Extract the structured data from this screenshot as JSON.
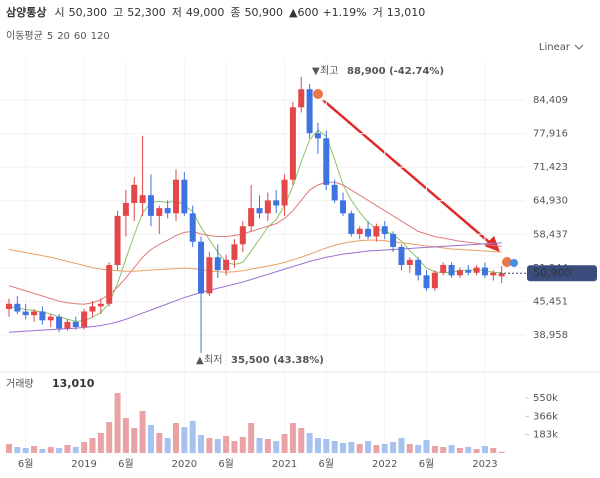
{
  "chart_data": {
    "type": "candlestick",
    "title": "삼양통상",
    "quote": [
      {
        "label": "시",
        "value": "50,300"
      },
      {
        "label": "고",
        "value": "52,300"
      },
      {
        "label": "저",
        "value": "49,000"
      },
      {
        "label": "종",
        "value": "50,900"
      }
    ],
    "change": "▲600",
    "change_pct": "+1.19%",
    "volume_quote": {
      "label": "거",
      "value": "13,010"
    },
    "ma_label": "이동평균",
    "scale_label": "Linear",
    "categories": [
      null,
      null,
      "6월",
      null,
      null,
      null,
      null,
      null,
      null,
      "2019",
      null,
      null,
      null,
      null,
      "6월",
      null,
      null,
      null,
      null,
      null,
      null,
      "2020",
      null,
      null,
      null,
      null,
      "6월",
      null,
      null,
      null,
      null,
      null,
      null,
      "2021",
      null,
      null,
      null,
      null,
      "6월",
      null,
      null,
      null,
      null,
      null,
      null,
      "2022",
      null,
      null,
      null,
      null,
      "6월",
      null,
      null,
      null,
      null,
      null,
      null,
      "2023",
      null,
      null
    ],
    "open": [
      44000,
      45000,
      43500,
      42800,
      43500,
      41800,
      42500,
      40200,
      41500,
      40500,
      43500,
      44500,
      45000,
      52500,
      62000,
      64500,
      64500,
      66000,
      62000,
      63500,
      62500,
      69000,
      62500,
      57000,
      47000,
      54000,
      51500,
      53500,
      56500,
      60000,
      63500,
      62500,
      65000,
      64000,
      69000,
      83000,
      86500,
      78000,
      77000,
      68000,
      65000,
      62500,
      58500,
      59500,
      58000,
      60000,
      58500,
      56000,
      52500,
      53500,
      50500,
      48000,
      51000,
      52500,
      50500,
      51500,
      51000,
      52000,
      50500,
      50300
    ],
    "high": [
      46000,
      46500,
      45000,
      44000,
      44500,
      43000,
      43000,
      42000,
      42500,
      44000,
      45500,
      46000,
      53000,
      63000,
      67000,
      69500,
      77500,
      70000,
      64000,
      65000,
      71000,
      70500,
      64000,
      58000,
      55000,
      56500,
      54500,
      57500,
      61000,
      68000,
      66000,
      66500,
      67000,
      70000,
      84000,
      88900,
      87500,
      80000,
      78500,
      69000,
      66500,
      63000,
      60000,
      61000,
      60500,
      61000,
      59000,
      56500,
      54000,
      54000,
      51500,
      51500,
      53000,
      53000,
      52000,
      52500,
      52500,
      53000,
      51500,
      52300
    ],
    "low": [
      42500,
      43000,
      42000,
      41500,
      41000,
      40500,
      39500,
      39800,
      40000,
      40000,
      42500,
      43000,
      44500,
      51500,
      58000,
      61000,
      62000,
      60000,
      58500,
      61500,
      61000,
      62000,
      56000,
      35500,
      46500,
      50000,
      50500,
      52000,
      55000,
      59000,
      61500,
      61000,
      62500,
      62000,
      68000,
      82000,
      77000,
      74000,
      67000,
      64500,
      62000,
      58000,
      57500,
      57500,
      57000,
      57500,
      55000,
      51500,
      51000,
      49500,
      47500,
      47500,
      50500,
      50000,
      50000,
      50500,
      50500,
      50000,
      49500,
      49000
    ],
    "close": [
      45000,
      43500,
      42800,
      43500,
      41800,
      42500,
      40200,
      41500,
      40500,
      43500,
      44500,
      45000,
      52500,
      62000,
      64500,
      68000,
      66000,
      62000,
      63500,
      62500,
      69000,
      62500,
      57000,
      47000,
      54000,
      51500,
      53500,
      56500,
      60000,
      63500,
      62500,
      65000,
      64000,
      69000,
      83000,
      86500,
      78000,
      77000,
      68000,
      65000,
      62500,
      58500,
      59500,
      58000,
      60000,
      58500,
      56000,
      52500,
      53500,
      50500,
      48000,
      51000,
      52500,
      50500,
      51500,
      51000,
      52000,
      50500,
      51000,
      50900
    ],
    "up_color": "#e3474a",
    "down_color": "#3f74e0",
    "series": [
      {
        "name": "5",
        "color": "#8bc26a",
        "values": [
          44500,
          44200,
          43900,
          43700,
          43400,
          43000,
          42500,
          42000,
          41600,
          41700,
          42400,
          43300,
          45100,
          48900,
          53700,
          58300,
          62600,
          64600,
          64800,
          64600,
          65000,
          64000,
          62800,
          59800,
          57400,
          55000,
          53000,
          52600,
          53000,
          55200,
          57500,
          59800,
          61300,
          64000,
          67700,
          72500,
          76700,
          78600,
          77400,
          72900,
          68000,
          65000,
          62700,
          60800,
          59500,
          59000,
          58400,
          57100,
          55300,
          53700,
          51900,
          51200,
          51000,
          51100,
          51400,
          51500,
          51600,
          51400,
          51100,
          51000
        ]
      },
      {
        "name": "20",
        "color": "#e07a7a",
        "values": [
          48500,
          48000,
          47500,
          47000,
          46500,
          46000,
          45500,
          45200,
          45000,
          44900,
          45200,
          45800,
          46800,
          48200,
          50000,
          52000,
          54000,
          55500,
          56500,
          57300,
          58200,
          58800,
          59000,
          58500,
          58200,
          58000,
          58000,
          58200,
          58500,
          59000,
          59500,
          60000,
          60500,
          61500,
          63000,
          65000,
          67000,
          68000,
          68500,
          68500,
          68000,
          67000,
          66000,
          65000,
          64000,
          63000,
          62000,
          61000,
          60000,
          59000,
          58500,
          58000,
          57700,
          57400,
          57100,
          56900,
          56700,
          56500,
          56300,
          56100
        ]
      },
      {
        "name": "60",
        "color": "#e8a060",
        "values": [
          55500,
          55200,
          54900,
          54600,
          54300,
          54000,
          53600,
          53200,
          52800,
          52400,
          52000,
          51700,
          51500,
          51400,
          51300,
          51300,
          51400,
          51500,
          51600,
          51700,
          51800,
          51900,
          51800,
          51600,
          51400,
          51200,
          51100,
          51200,
          51400,
          51700,
          52000,
          52300,
          52600,
          53000,
          53500,
          54000,
          54600,
          55200,
          55800,
          56300,
          56700,
          57000,
          57200,
          57300,
          57300,
          57200,
          57000,
          56800,
          56600,
          56400,
          56200,
          56000,
          55800,
          55600,
          55500,
          55400,
          55300,
          55200,
          55100,
          55000
        ]
      },
      {
        "name": "120",
        "color": "#9b6fd6",
        "values": [
          39500,
          39600,
          39700,
          39800,
          39900,
          40000,
          40100,
          40200,
          40300,
          40400,
          40600,
          40800,
          41100,
          41500,
          42000,
          42600,
          43200,
          43800,
          44400,
          45000,
          45600,
          46200,
          46700,
          47200,
          47600,
          48000,
          48400,
          48800,
          49200,
          49700,
          50200,
          50700,
          51200,
          51700,
          52200,
          52700,
          53200,
          53600,
          54000,
          54300,
          54600,
          54800,
          55000,
          55200,
          55300,
          55400,
          55500,
          55600,
          55700,
          55800,
          55900,
          56000,
          56100,
          56200,
          56300,
          56400,
          56500,
          56600,
          56700,
          56800
        ]
      }
    ],
    "ylim": [
      32190,
      92150
    ],
    "yticks": [
      {
        "value": 38958,
        "label": "38,958"
      },
      {
        "value": 45451,
        "label": "45,451"
      },
      {
        "value": 51944,
        "label": "51,944"
      },
      {
        "value": 58437,
        "label": "58,437"
      },
      {
        "value": 64930,
        "label": "64,930"
      },
      {
        "value": 71423,
        "label": "71,423"
      },
      {
        "value": 77916,
        "label": "77,916"
      },
      {
        "value": 84409,
        "label": "84,409"
      }
    ],
    "last_price": {
      "value": 50900,
      "label": "50,900"
    },
    "annotations": [
      {
        "label": "최고",
        "text": "88,900 (-42.74%)"
      },
      {
        "label": "최저",
        "text": "35,500 (43.38%)"
      }
    ],
    "volume": {
      "label": "거래량",
      "value_label": "13,010",
      "values": [
        90000,
        60000,
        50000,
        70000,
        40000,
        60000,
        50000,
        80000,
        60000,
        110000,
        150000,
        200000,
        310000,
        600000,
        350000,
        250000,
        420000,
        280000,
        200000,
        150000,
        300000,
        260000,
        320000,
        180000,
        150000,
        140000,
        170000,
        120000,
        160000,
        300000,
        150000,
        140000,
        120000,
        190000,
        300000,
        250000,
        200000,
        150000,
        140000,
        120000,
        100000,
        110000,
        90000,
        120000,
        80000,
        90000,
        110000,
        150000,
        90000,
        80000,
        130000,
        70000,
        60000,
        80000,
        50000,
        60000,
        40000,
        70000,
        50000,
        13010
      ],
      "up_color": "#e9a3a5",
      "down_color": "#a6c2ef",
      "ylim": [
        0,
        780000
      ],
      "yticks": [
        {
          "value": 183000,
          "label": "183k"
        },
        {
          "value": 366000,
          "label": "366k"
        },
        {
          "value": 550000,
          "label": "550k"
        }
      ]
    }
  }
}
